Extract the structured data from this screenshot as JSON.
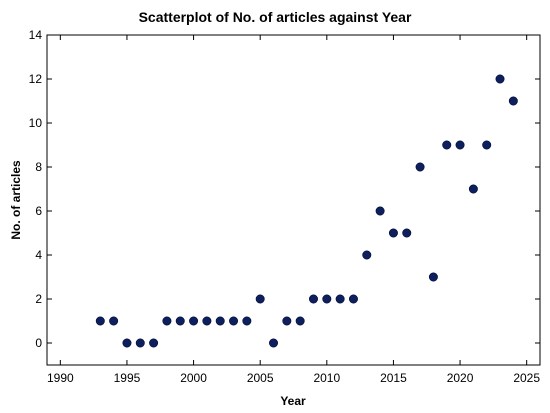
{
  "chart_data": {
    "type": "scatter",
    "title": "Scatterplot of No. of articles against Year",
    "xlabel": "Year",
    "ylabel": "No. of articles",
    "xlim": [
      1989,
      2026
    ],
    "ylim": [
      -1,
      14
    ],
    "xticks": [
      1990,
      1995,
      2000,
      2005,
      2010,
      2015,
      2020,
      2025
    ],
    "yticks": [
      0,
      2,
      4,
      6,
      8,
      10,
      12,
      14
    ],
    "grid": false,
    "marker_color": "#0d1f5c",
    "points": [
      {
        "x": 1993,
        "y": 1
      },
      {
        "x": 1994,
        "y": 1
      },
      {
        "x": 1995,
        "y": 0
      },
      {
        "x": 1996,
        "y": 0
      },
      {
        "x": 1997,
        "y": 0
      },
      {
        "x": 1998,
        "y": 1
      },
      {
        "x": 1999,
        "y": 1
      },
      {
        "x": 2000,
        "y": 1
      },
      {
        "x": 2001,
        "y": 1
      },
      {
        "x": 2002,
        "y": 1
      },
      {
        "x": 2003,
        "y": 1
      },
      {
        "x": 2004,
        "y": 1
      },
      {
        "x": 2005,
        "y": 2
      },
      {
        "x": 2006,
        "y": 0
      },
      {
        "x": 2007,
        "y": 1
      },
      {
        "x": 2008,
        "y": 1
      },
      {
        "x": 2009,
        "y": 2
      },
      {
        "x": 2010,
        "y": 2
      },
      {
        "x": 2011,
        "y": 2
      },
      {
        "x": 2012,
        "y": 2
      },
      {
        "x": 2013,
        "y": 4
      },
      {
        "x": 2014,
        "y": 6
      },
      {
        "x": 2015,
        "y": 5
      },
      {
        "x": 2016,
        "y": 5
      },
      {
        "x": 2017,
        "y": 8
      },
      {
        "x": 2018,
        "y": 3
      },
      {
        "x": 2019,
        "y": 9
      },
      {
        "x": 2020,
        "y": 9
      },
      {
        "x": 2021,
        "y": 7
      },
      {
        "x": 2022,
        "y": 9
      },
      {
        "x": 2023,
        "y": 12
      },
      {
        "x": 2024,
        "y": 11
      }
    ]
  }
}
